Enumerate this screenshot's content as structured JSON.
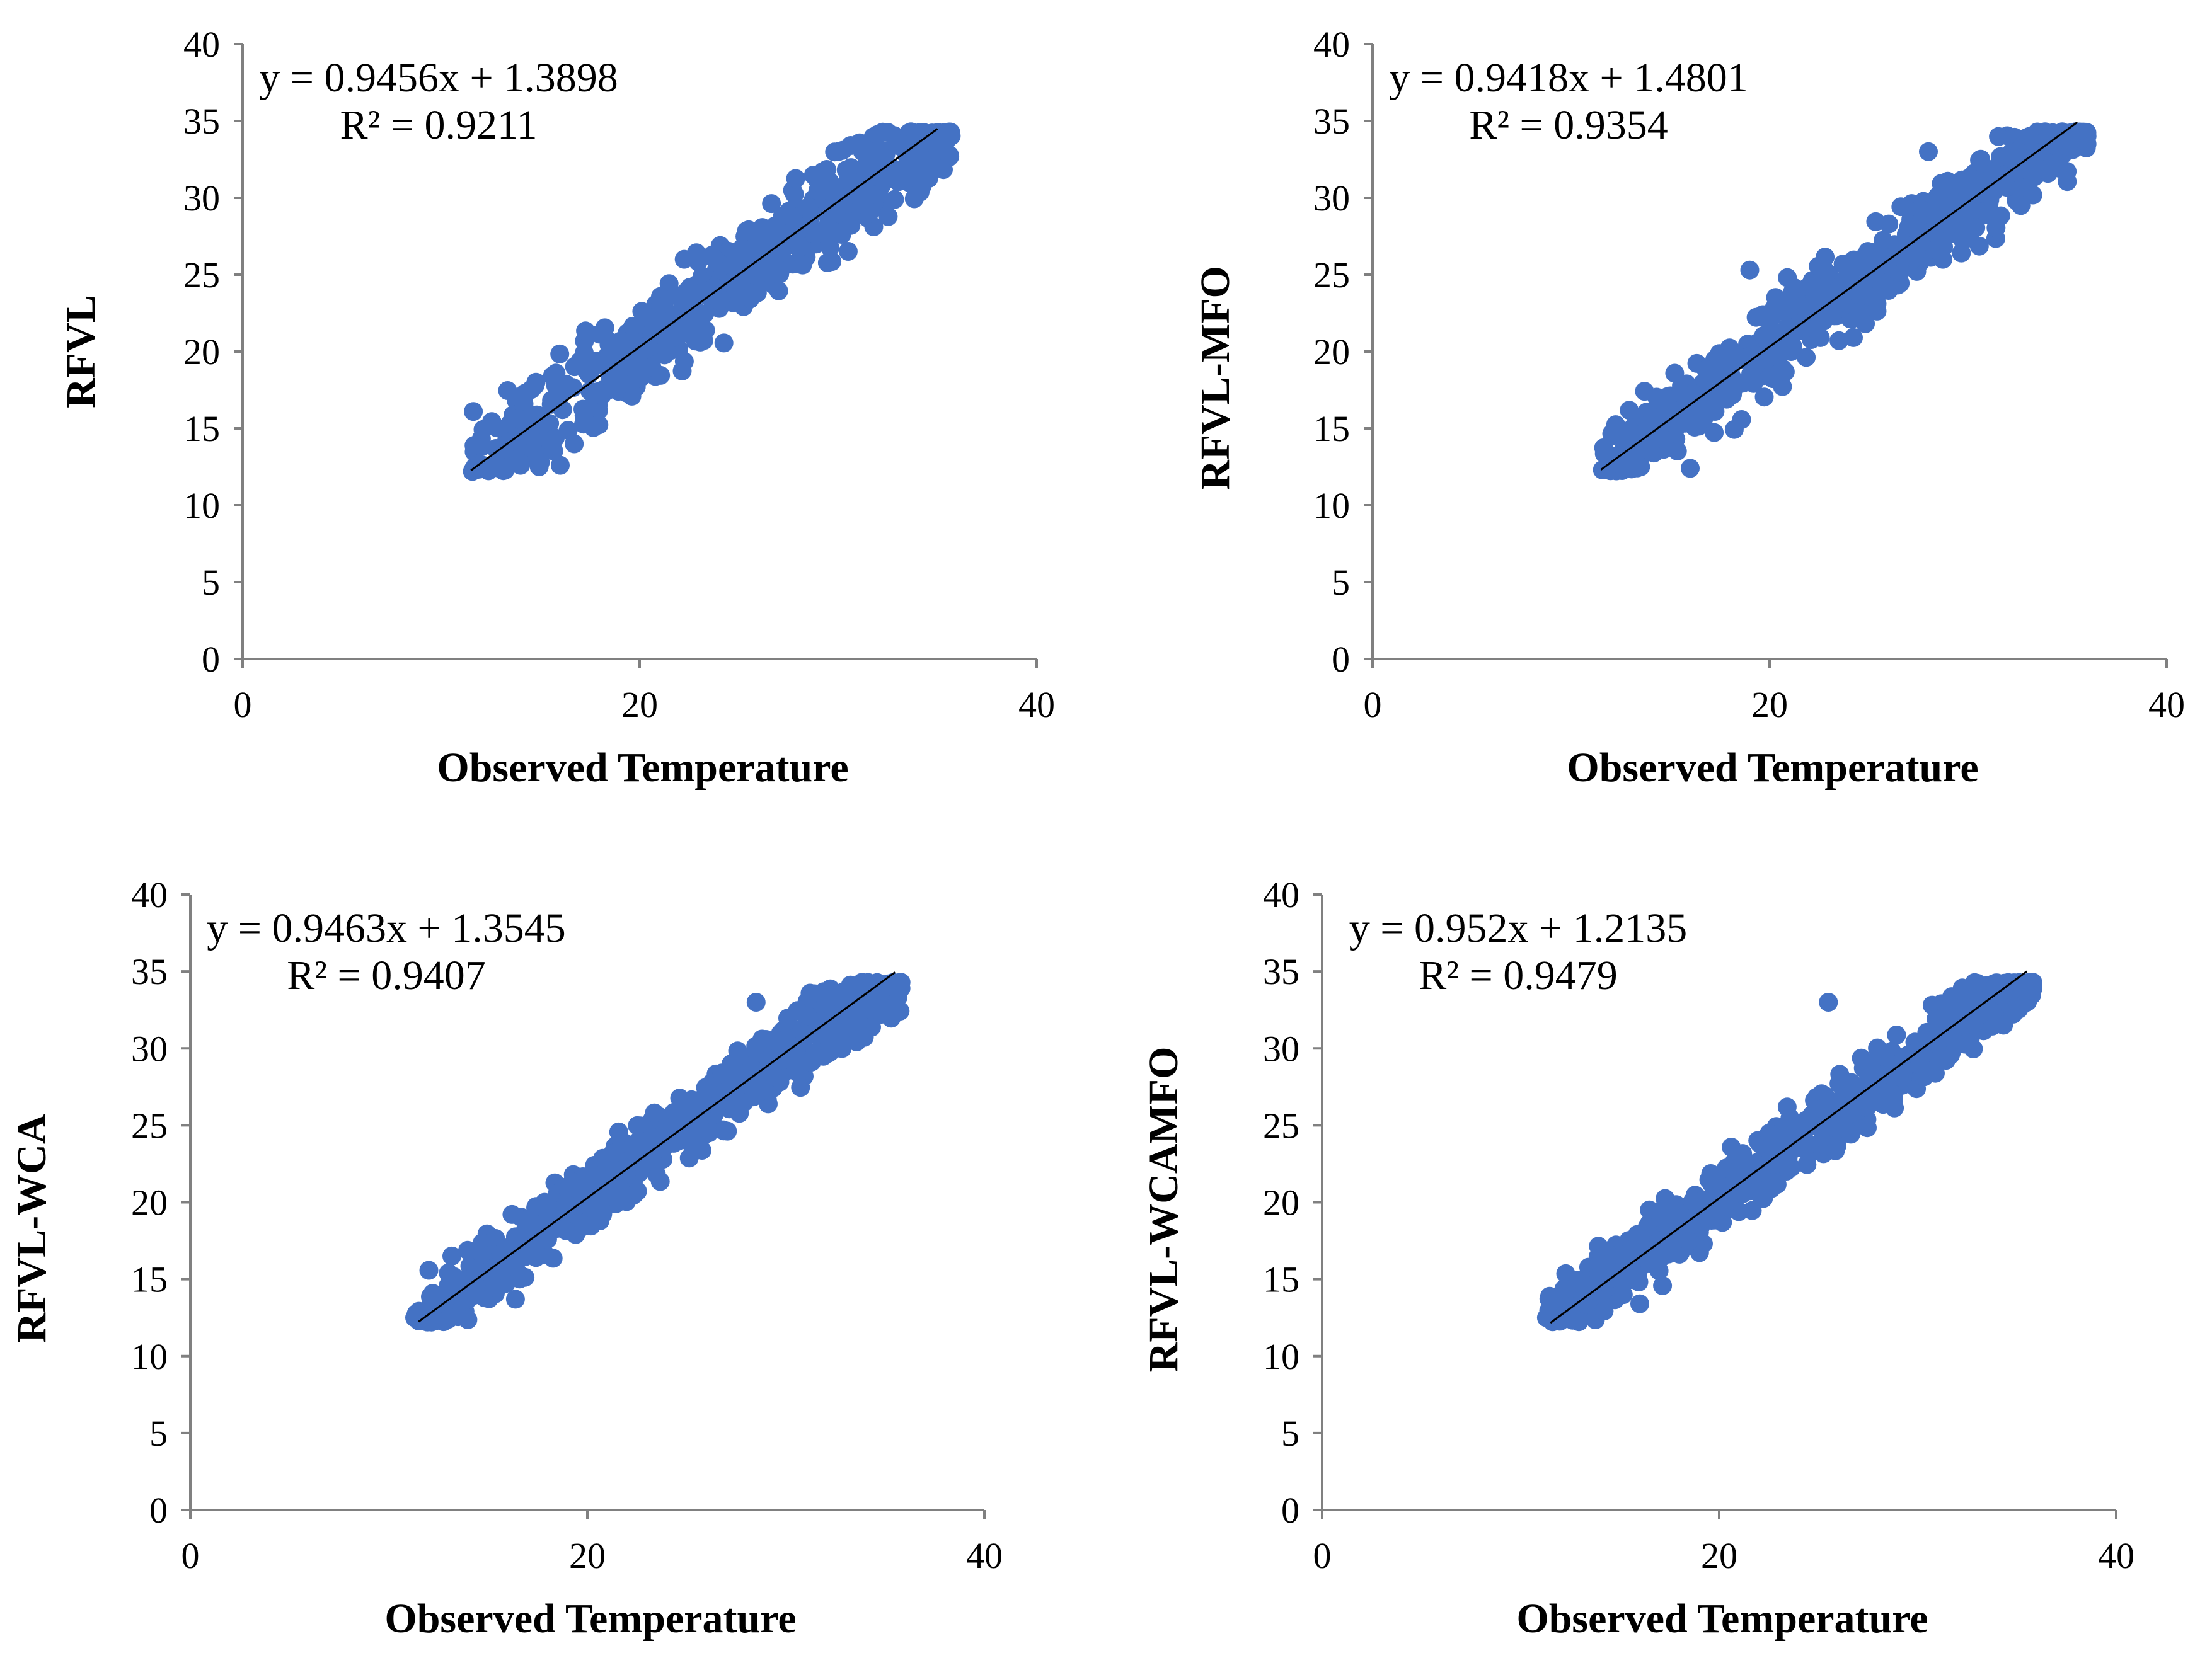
{
  "chart_data": [
    {
      "type": "scatter",
      "panel": "top-left",
      "xlabel": "Observed Temperature",
      "ylabel": "RFVL",
      "xlim": [
        0,
        40
      ],
      "ylim": [
        0,
        40
      ],
      "xticks": [
        "0",
        "20",
        "40"
      ],
      "yticks": [
        "0",
        "5",
        "10",
        "15",
        "20",
        "25",
        "30",
        "35",
        "40"
      ],
      "equation": "y = 0.9456x + 1.3898",
      "r_squared": "R² = 0.9211",
      "trendline": {
        "slope": 0.9456,
        "intercept": 1.3898,
        "x_range": [
          11.5,
          35
        ]
      },
      "series": [
        {
          "name": "points",
          "color": "#4472C4",
          "x_range": [
            11.5,
            35.7
          ],
          "spread": 1.5,
          "seed": 11,
          "extra_points": [
            [
              12,
              12.6
            ],
            [
              13,
              12.5
            ],
            [
              14,
              12.6
            ],
            [
              15,
              12.8
            ],
            [
              16,
              12.6
            ],
            [
              14.5,
              14.5
            ],
            [
              30,
              33
            ],
            [
              33,
              33.4
            ]
          ]
        }
      ]
    },
    {
      "type": "scatter",
      "panel": "top-right",
      "xlabel": "Observed Temperature",
      "ylabel": "RFVL-MFO",
      "xlim": [
        0,
        40
      ],
      "ylim": [
        0,
        40
      ],
      "xticks": [
        "0",
        "20",
        "40"
      ],
      "yticks": [
        "0",
        "5",
        "10",
        "15",
        "20",
        "25",
        "30",
        "35",
        "40"
      ],
      "equation": "y = 0.9418x + 1.4801",
      "r_squared": "R² = 0.9354",
      "trendline": {
        "slope": 0.9418,
        "intercept": 1.4801,
        "x_range": [
          11.5,
          35.5
        ]
      },
      "series": [
        {
          "name": "points",
          "color": "#4472C4",
          "x_range": [
            11.5,
            36
          ],
          "spread": 1.3,
          "seed": 23,
          "extra_points": [
            [
              16,
              12.4
            ],
            [
              13.5,
              12.5
            ],
            [
              19,
              25.3
            ],
            [
              28,
              33
            ],
            [
              34,
              34
            ]
          ]
        }
      ]
    },
    {
      "type": "scatter",
      "panel": "bottom-left",
      "xlabel": "Observed Temperature",
      "ylabel": "RFVL-WCA",
      "xlim": [
        0,
        40
      ],
      "ylim": [
        0,
        40
      ],
      "xticks": [
        "0",
        "20",
        "40"
      ],
      "yticks": [
        "0",
        "5",
        "10",
        "15",
        "20",
        "25",
        "30",
        "35",
        "40"
      ],
      "equation": "y = 0.9463x + 1.3545",
      "r_squared": "R² = 0.9407",
      "trendline": {
        "slope": 0.9463,
        "intercept": 1.3545,
        "x_range": [
          11.5,
          35.5
        ]
      },
      "series": [
        {
          "name": "points",
          "color": "#4472C4",
          "x_range": [
            11.3,
            35.8
          ],
          "spread": 1.2,
          "seed": 37,
          "extra_points": [
            [
              11.3,
              12.5
            ],
            [
              13,
              12.4
            ],
            [
              28.5,
              33
            ],
            [
              34,
              34.2
            ]
          ]
        }
      ]
    },
    {
      "type": "scatter",
      "panel": "bottom-right",
      "xlabel": "Observed Temperature",
      "ylabel": "RFVL-WCAMFO",
      "xlim": [
        0,
        40
      ],
      "ylim": [
        0,
        40
      ],
      "xticks": [
        "0",
        "20",
        "40"
      ],
      "yticks": [
        "0",
        "5",
        "10",
        "15",
        "20",
        "25",
        "30",
        "35",
        "40"
      ],
      "equation": "y = 0.952x + 1.2135",
      "r_squared": "R² = 0.9479",
      "trendline": {
        "slope": 0.952,
        "intercept": 1.2135,
        "x_range": [
          11.5,
          35.5
        ]
      },
      "series": [
        {
          "name": "points",
          "color": "#4472C4",
          "x_range": [
            11.3,
            35.8
          ],
          "spread": 1.1,
          "seed": 53,
          "extra_points": [
            [
              11.3,
              12.5
            ],
            [
              16,
              13.4
            ],
            [
              25.5,
              33
            ],
            [
              34.5,
              34.2
            ]
          ]
        }
      ]
    }
  ]
}
